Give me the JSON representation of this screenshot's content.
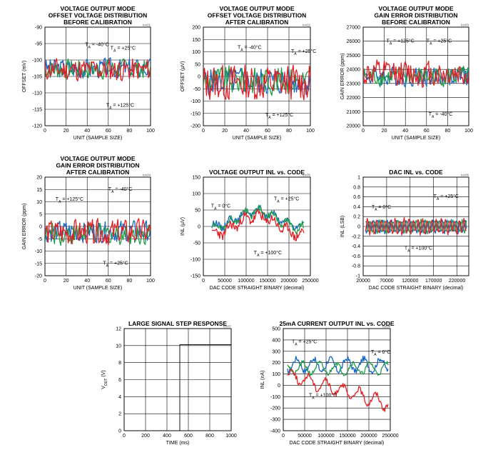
{
  "colors": {
    "grid": "#000000",
    "red": "#e31e24",
    "green": "#1f9e4a",
    "blue": "#1565c0"
  },
  "chart_data": [
    {
      "id": "c1",
      "type": "line",
      "title": [
        "VOLTAGE OUTPUT MODE",
        "OFFSET VOLTAGE DISTRIBUTION",
        "BEFORE CALIBRATION"
      ],
      "tag": "toc01",
      "xlabel": "UNIT (SAMPLE SIZE)",
      "ylabel": "OFFSET (mV)",
      "xlim": [
        0,
        100
      ],
      "ylim": [
        -120,
        -90
      ],
      "xticks": [
        0,
        20,
        40,
        60,
        80,
        100
      ],
      "yticks": [
        -120,
        -115,
        -110,
        -105,
        -100,
        -95,
        -90
      ],
      "annotations": [
        {
          "text": "T",
          "sub": "A",
          "rest": " = -40°C",
          "at": [
            38,
            -95.8
          ]
        },
        {
          "text": "T",
          "sub": "A",
          "rest": " = +25°C",
          "at": [
            62,
            -96.8
          ]
        },
        {
          "text": "T",
          "sub": "A",
          "rest": " = +125°C",
          "at": [
            58,
            -114.2
          ]
        }
      ],
      "series": [
        {
          "name": "T_A = +125°C",
          "color": "blue",
          "base": -102.5,
          "amp": 3.5,
          "seed": 3
        },
        {
          "name": "T_A = +25°C",
          "color": "green",
          "base": -102.8,
          "amp": 3.5,
          "seed": 7
        },
        {
          "name": "T_A = -40°C",
          "color": "red",
          "base": -103,
          "amp": 4,
          "seed": 11
        }
      ]
    },
    {
      "id": "c2",
      "type": "line",
      "title": [
        "VOLTAGE OUTPUT MODE",
        "OFFSET VOLTAGE DISTRIBUTION",
        "AFTER CALIBRATION"
      ],
      "tag": "toc02",
      "xlabel": "UNIT (SAMPLE SIZE)",
      "ylabel": "OFFSET (µV)",
      "xlim": [
        0,
        100
      ],
      "ylim": [
        -200,
        200
      ],
      "xticks": [
        0,
        20,
        40,
        60,
        80,
        100
      ],
      "yticks": [
        -200,
        -150,
        -100,
        -50,
        0,
        50,
        100,
        150,
        200
      ],
      "annotations": [
        {
          "text": "T",
          "sub": "A",
          "rest": " = -40°C",
          "at": [
            32,
            112
          ]
        },
        {
          "text": "T",
          "sub": "A",
          "rest": " = +25°C",
          "at": [
            82,
            96
          ]
        },
        {
          "text": "T",
          "sub": "A",
          "rest": " = +125°C",
          "at": [
            58,
            -162
          ]
        }
      ],
      "series": [
        {
          "name": "T_A = +125°C",
          "color": "blue",
          "base": -20,
          "amp": 65,
          "seed": 5
        },
        {
          "name": "T_A = +25°C",
          "color": "green",
          "base": -15,
          "amp": 65,
          "seed": 9
        },
        {
          "name": "T_A = -40°C",
          "color": "red",
          "base": -25,
          "amp": 85,
          "seed": 13
        }
      ]
    },
    {
      "id": "c3",
      "type": "line",
      "title": [
        "VOLTAGE OUTPUT MODE",
        "GAIN ERROR DISTRIBUTION",
        "BEFORE CALIBRATION"
      ],
      "tag": "toc03",
      "xlabel": "UNIT (SAMPLE SIZE)",
      "ylabel": "GAIN ERROR (ppm)",
      "xlim": [
        0,
        100
      ],
      "ylim": [
        20000,
        27000
      ],
      "xticks": [
        0,
        20,
        40,
        60,
        80,
        100
      ],
      "yticks": [
        20000,
        21000,
        22000,
        23000,
        24000,
        25000,
        26000,
        27000
      ],
      "annotations": [
        {
          "text": "T",
          "sub": "A",
          "rest": " = +125°C",
          "at": [
            22,
            25900
          ]
        },
        {
          "text": "T",
          "sub": "A",
          "rest": " = +25°C",
          "at": [
            60,
            25900
          ]
        },
        {
          "text": "T",
          "sub": "A",
          "rest": " = -40°C",
          "at": [
            62,
            20700
          ]
        }
      ],
      "series": [
        {
          "name": "T_A = -40°C",
          "color": "blue",
          "base": 23500,
          "amp": 800,
          "seed": 4
        },
        {
          "name": "T_A = +25°C",
          "color": "green",
          "base": 23500,
          "amp": 800,
          "seed": 8
        },
        {
          "name": "T_A = +125°C",
          "color": "red",
          "base": 23700,
          "amp": 1100,
          "seed": 12
        }
      ]
    },
    {
      "id": "c4",
      "type": "line",
      "title": [
        "VOLTAGE OUTPUT MODE",
        "GAIN ERROR DISTRIBUTION",
        "AFTER CALIBRATION"
      ],
      "tag": "toc04",
      "xlabel": "UNIT (SAMPLE SIZE)",
      "ylabel": "GAIN ERROR (ppm)",
      "xlim": [
        0,
        100
      ],
      "ylim": [
        -20,
        20
      ],
      "xticks": [
        0,
        20,
        40,
        60,
        80,
        100
      ],
      "yticks": [
        -20,
        -15,
        -10,
        -5,
        0,
        5,
        10,
        15,
        20
      ],
      "annotations": [
        {
          "text": "T",
          "sub": "A",
          "rest": " = +125°C",
          "at": [
            10,
            10.5
          ]
        },
        {
          "text": "T",
          "sub": "A",
          "rest": " = -40°C",
          "at": [
            60,
            14.5
          ]
        },
        {
          "text": "T",
          "sub": "A",
          "rest": " = +25°C",
          "at": [
            55,
            -15.5
          ]
        }
      ],
      "series": [
        {
          "name": "T_A = -40°C",
          "color": "blue",
          "base": -2,
          "amp": 5,
          "seed": 6
        },
        {
          "name": "T_A = +25°C",
          "color": "green",
          "base": -3,
          "amp": 5,
          "seed": 10
        },
        {
          "name": "T_A = +125°C",
          "color": "red",
          "base": -2.5,
          "amp": 6,
          "seed": 14
        }
      ]
    },
    {
      "id": "c5",
      "type": "line",
      "title": [
        "VOLTAGE OUTPUT INL vs. CODE"
      ],
      "tag": "toc05",
      "xlabel": "DAC CODE STRAIGHT BINARY (decimal)",
      "ylabel": "INL (µV)",
      "xlim": [
        0,
        250000
      ],
      "ylim": [
        -150,
        150
      ],
      "xticks": [
        0,
        50000,
        100000,
        150000,
        200000,
        250000
      ],
      "yticks": [
        -150,
        -100,
        -50,
        0,
        50,
        100,
        150
      ],
      "annotations": [
        {
          "text": "T",
          "sub": "A",
          "rest": " = +25°C",
          "at": [
            165000,
            79
          ]
        },
        {
          "text": "T",
          "sub": "A",
          "rest": " = 0°C",
          "at": [
            18000,
            58
          ]
        },
        {
          "text": "T",
          "sub": "A",
          "rest": " = +100°C",
          "at": [
            118000,
            -85
          ]
        }
      ],
      "series": [
        {
          "name": "T_A = 0°C",
          "color": "blue",
          "shape": "hump",
          "x0": 20000,
          "x1": 235000,
          "base": 0,
          "amp": 45,
          "noise": 10,
          "seed": 15
        },
        {
          "name": "T_A = +25°C",
          "color": "green",
          "shape": "hump",
          "x0": 20000,
          "x1": 235000,
          "base": -5,
          "amp": 50,
          "noise": 10,
          "seed": 19
        },
        {
          "name": "T_A = +100°C",
          "color": "red",
          "shape": "hump",
          "x0": 20000,
          "x1": 235000,
          "base": -25,
          "amp": 55,
          "noise": 14,
          "seed": 23
        }
      ]
    },
    {
      "id": "c6",
      "type": "line",
      "title": [
        "DAC INL vs. CODE"
      ],
      "tag": "toc06",
      "xlabel": "DAC CODE STRAIGHT BINARY (decimal)",
      "ylabel": "INL (LSB)",
      "xlim": [
        20000,
        245000
      ],
      "ylim": [
        -1,
        1
      ],
      "xticks": [
        20000,
        70000,
        120000,
        170000,
        220000
      ],
      "yticks": [
        -1.0,
        -0.8,
        -0.6,
        -0.4,
        -0.2,
        0,
        0.2,
        0.4,
        0.6,
        0.8,
        1.0
      ],
      "annotations": [
        {
          "text": "T",
          "sub": "A",
          "rest": " = +25°C",
          "at": [
            170000,
            0.58
          ]
        },
        {
          "text": "T",
          "sub": "A",
          "rest": " = 0°C",
          "at": [
            38000,
            0.36
          ]
        },
        {
          "text": "T",
          "sub": "A",
          "rest": " = +100°C",
          "at": [
            108000,
            -0.47
          ]
        }
      ],
      "series": [
        {
          "name": "T_A = 0°C",
          "color": "blue",
          "shape": "ripple",
          "x0": 25000,
          "x1": 240000,
          "base": 0,
          "amp": 0.12,
          "seed": 16
        },
        {
          "name": "T_A = +25°C",
          "color": "green",
          "shape": "ripple",
          "x0": 25000,
          "x1": 240000,
          "base": 0,
          "amp": 0.12,
          "seed": 20
        },
        {
          "name": "T_A = +100°C",
          "color": "red",
          "shape": "ripple",
          "x0": 25000,
          "x1": 240000,
          "base": 0,
          "amp": 0.14,
          "seed": 24
        }
      ]
    },
    {
      "id": "c7",
      "type": "line",
      "title": [
        "LARGE SIGNAL STEP RESPONSE"
      ],
      "tag": "toc07",
      "xlabel": "TIME (ms)",
      "ylabel": "V",
      "ylabel_sub": "OUT",
      "ylabel_rest": " (V)",
      "xlim": [
        0,
        1000
      ],
      "ylim": [
        0,
        12
      ],
      "xticks": [
        0,
        200,
        400,
        600,
        800,
        1000
      ],
      "yticks": [
        0,
        2,
        4,
        6,
        8,
        10,
        12
      ],
      "annotations": [],
      "series": [
        {
          "name": "V_OUT",
          "color": "black",
          "points": [
            [
              0,
              0
            ],
            [
              520,
              0
            ],
            [
              520,
              10.1
            ],
            [
              1000,
              10.1
            ]
          ]
        }
      ]
    },
    {
      "id": "c8",
      "type": "line",
      "title": [
        "25mA CURRENT OUTPUT INL vs. CODE"
      ],
      "tag": "toc08",
      "xlabel": "DAC CODE STRAIGHT BINARY (decimal)",
      "ylabel": "INL (nA)",
      "xlim": [
        0,
        250000
      ],
      "ylim": [
        -400,
        500
      ],
      "xticks": [
        0,
        50000,
        100000,
        150000,
        200000,
        250000
      ],
      "yticks": [
        -400,
        -300,
        -200,
        -100,
        0,
        100,
        200,
        300,
        400,
        500
      ],
      "annotations": [
        {
          "text": "T",
          "sub": "A",
          "rest": " = +25°C",
          "at": [
            20000,
            370
          ]
        },
        {
          "text": "T",
          "sub": "A",
          "rest": " = 0°C",
          "at": [
            205000,
            280
          ]
        },
        {
          "text": "T",
          "sub": "A",
          "rest": " = +100°C",
          "at": [
            60000,
            -100
          ]
        }
      ],
      "series": [
        {
          "name": "T_A = 0°C",
          "color": "blue",
          "shape": "wavy",
          "x0": 10000,
          "x1": 245000,
          "base": 180,
          "trend": 0,
          "amp": 70,
          "seed": 17
        },
        {
          "name": "T_A = +25°C",
          "color": "green",
          "shape": "wavy",
          "x0": 10000,
          "x1": 245000,
          "base": 150,
          "trend": 0,
          "amp": 60,
          "seed": 21
        },
        {
          "name": "T_A = +100°C",
          "color": "red",
          "shape": "wavy",
          "x0": 10000,
          "x1": 245000,
          "base": 90,
          "trend": -250,
          "amp": 70,
          "seed": 25
        }
      ]
    }
  ]
}
